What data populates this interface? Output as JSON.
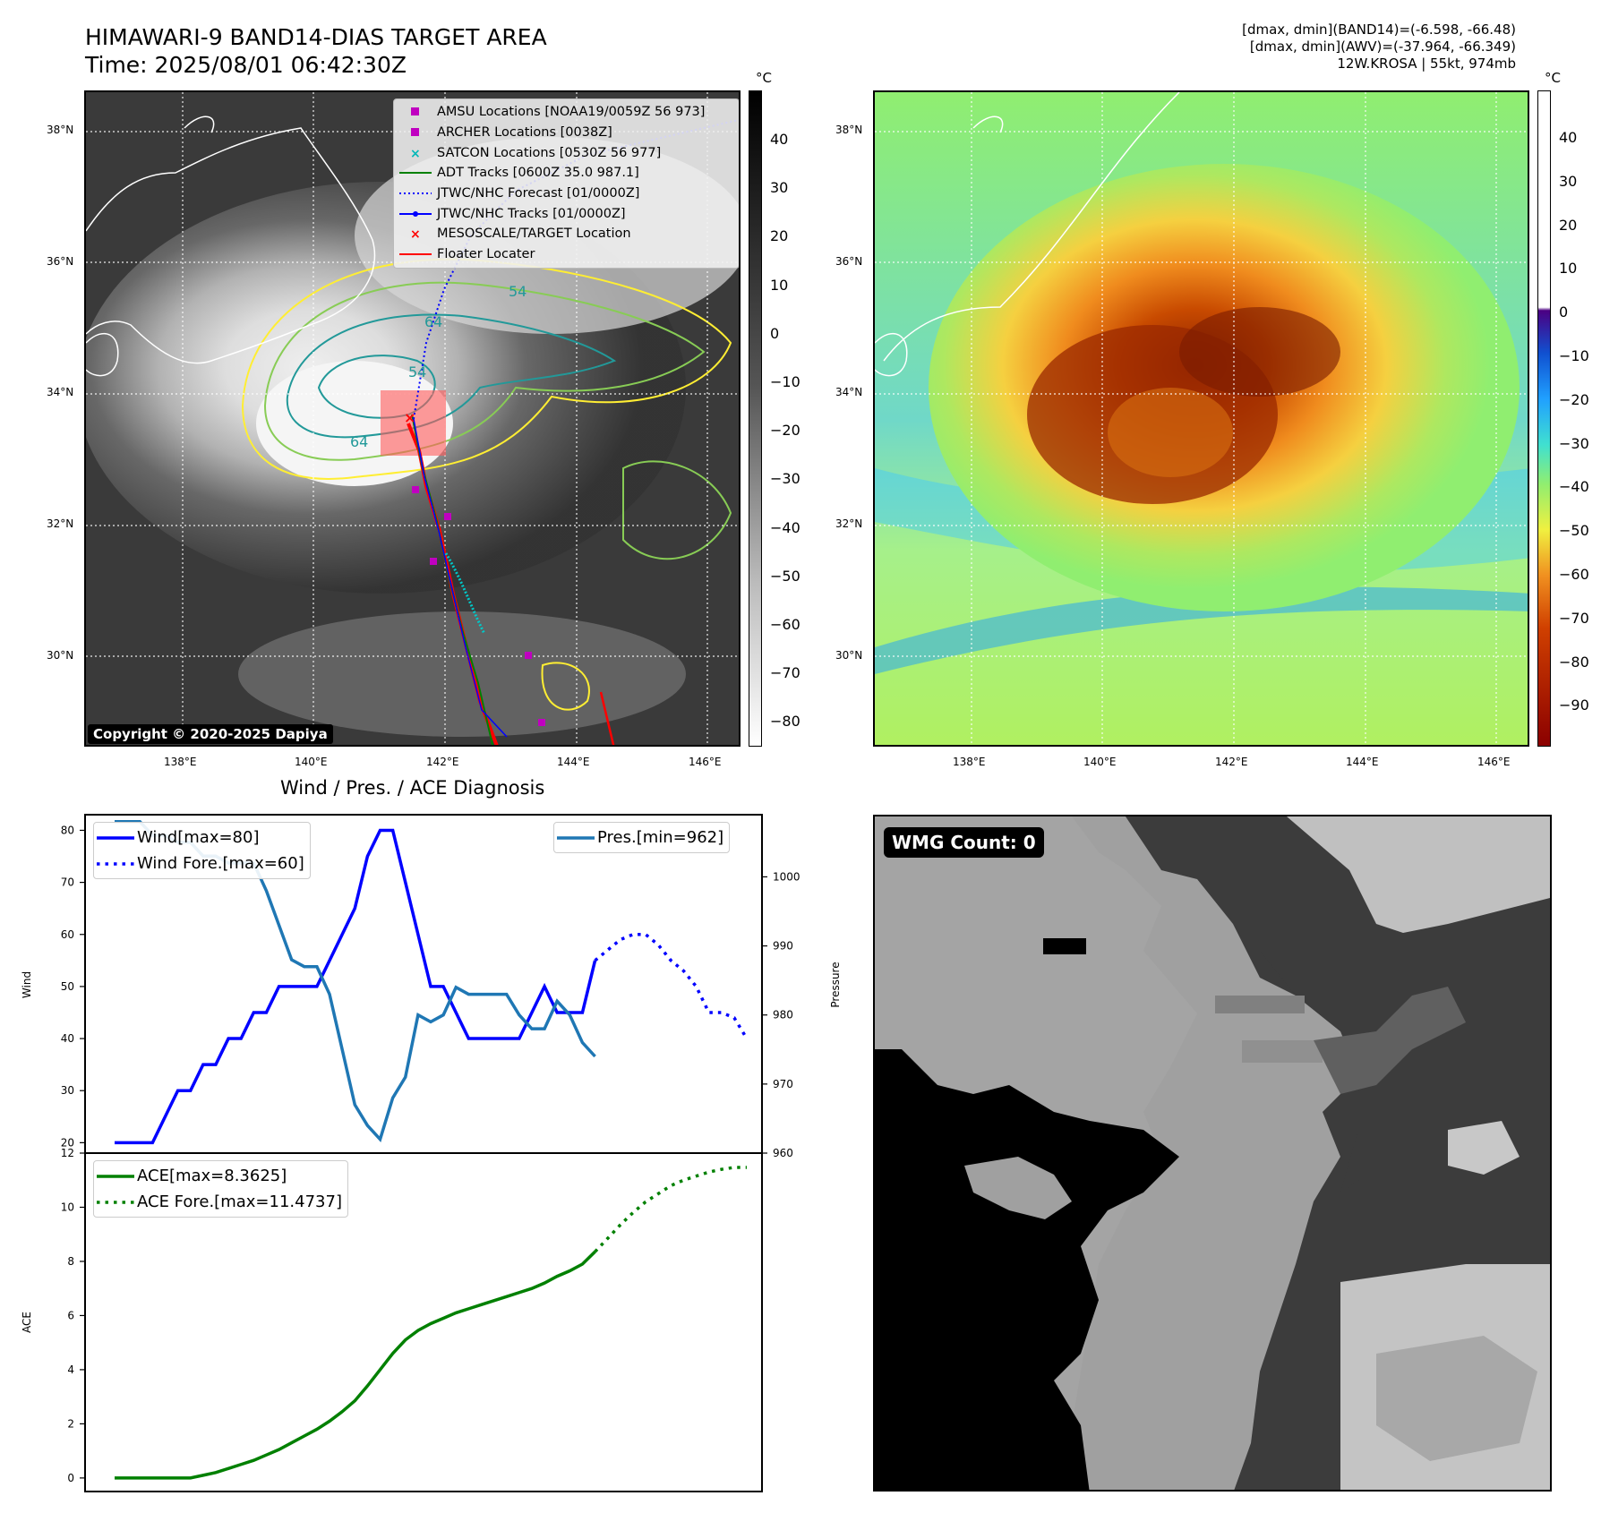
{
  "header": {
    "title_line1": "HIMAWARI-9 BAND14-DIAS TARGET AREA",
    "title_line2": "Time: 2025/08/01 06:42:30Z",
    "right_line1": "[dmax, dmin](BAND14)=(-6.598, -66.48)",
    "right_line2": "[dmax, dmin](AWV)=(-37.964, -66.349)",
    "right_line3": "12W.KROSA | 55kt, 974mb"
  },
  "map_axes": {
    "lat_labels": [
      "38°N",
      "36°N",
      "34°N",
      "32°N",
      "30°N"
    ],
    "lon_labels": [
      "138°E",
      "140°E",
      "142°E",
      "144°E",
      "146°E"
    ]
  },
  "ir_panel": {
    "colorbar_unit": "°C",
    "colorbar_ticks": [
      "40",
      "30",
      "20",
      "10",
      "0",
      "−10",
      "−20",
      "−30",
      "−40",
      "−50",
      "−60",
      "−70",
      "−80"
    ],
    "copyright": "Copyright © 2020-2025 Dapiya",
    "legend": [
      {
        "label": "AMSU Locations [NOAA19/0059Z 56 973]",
        "color": "#c000c0",
        "symbol": "square"
      },
      {
        "label": "ARCHER Locations [0038Z]",
        "color": "#c000c0",
        "symbol": "square"
      },
      {
        "label": "SATCON Locations [0530Z 56 977]",
        "color": "#00b8b8",
        "symbol": "x"
      },
      {
        "label": "ADT Tracks [0600Z 35.0 987.1]",
        "color": "#008000",
        "symbol": "line"
      },
      {
        "label": "JTWC/NHC Forecast [01/0000Z]",
        "color": "#0000ff",
        "symbol": "dotted"
      },
      {
        "label": "JTWC/NHC Tracks [01/0000Z]",
        "color": "#0000ff",
        "symbol": "line-dot"
      },
      {
        "label": "MESOSCALE/TARGET Location",
        "color": "#ff0000",
        "symbol": "x"
      },
      {
        "label": "Floater Locater",
        "color": "#ff0000",
        "symbol": "line"
      }
    ],
    "contour_labels": [
      "54",
      "64",
      "54",
      "64"
    ]
  },
  "wv_panel": {
    "colorbar_unit": "°C",
    "colorbar_ticks": [
      "40",
      "30",
      "20",
      "10",
      "0",
      "−10",
      "−20",
      "−30",
      "−40",
      "−50",
      "−60",
      "−70",
      "−80",
      "−90"
    ]
  },
  "diagnosis": {
    "title": "Wind / Pres. / ACE Diagnosis",
    "wind_ylabel": "Wind",
    "pressure_ylabel": "Pressure",
    "ace_ylabel": "ACE",
    "legend_wind": "Wind[max=80]",
    "legend_wind_fore": "Wind Fore.[max=60]",
    "legend_pres": "Pres.[min=962]",
    "legend_ace": "ACE[max=8.3625]",
    "legend_ace_fore": "ACE Fore.[max=11.4737]"
  },
  "wmg_panel": {
    "label": "WMG Count: 0"
  },
  "chart_data": [
    {
      "type": "line",
      "title": "Wind / Pres. / ACE Diagnosis",
      "ylabel": "Wind",
      "y2label": "Pressure",
      "ylim": [
        18,
        83
      ],
      "y2lim": [
        960,
        1009
      ],
      "yticks": [
        20,
        30,
        40,
        50,
        60,
        70,
        80
      ],
      "y2ticks": [
        960,
        970,
        980,
        990,
        1000
      ],
      "series": [
        {
          "name": "Wind[max=80]",
          "axis": "left",
          "color": "#0000ff",
          "style": "solid",
          "x": [
            0,
            1,
            2,
            3,
            4,
            5,
            6,
            7,
            8,
            9,
            10,
            11,
            12,
            13,
            14,
            15,
            16,
            17,
            18,
            19,
            20,
            21,
            22,
            23,
            24,
            25,
            26,
            27,
            28,
            29,
            30,
            31,
            32,
            33,
            34,
            35,
            36,
            37,
            38
          ],
          "values": [
            20,
            20,
            20,
            20,
            25,
            30,
            30,
            35,
            35,
            40,
            40,
            45,
            45,
            50,
            50,
            50,
            50,
            55,
            60,
            65,
            75,
            80,
            80,
            70,
            60,
            50,
            50,
            45,
            40,
            40,
            40,
            40,
            40,
            45,
            50,
            45,
            45,
            45,
            55
          ]
        },
        {
          "name": "Wind Fore.[max=60]",
          "axis": "left",
          "color": "#0000ff",
          "style": "dotted",
          "x": [
            38,
            39,
            40,
            41,
            42,
            43,
            44,
            45,
            46,
            47,
            48,
            49,
            50
          ],
          "values": [
            55,
            57,
            59,
            60,
            60,
            58,
            55,
            53,
            50,
            45,
            45,
            44,
            40
          ]
        },
        {
          "name": "Pres.[min=962]",
          "axis": "right",
          "color": "#1f77b4",
          "style": "solid",
          "x": [
            0,
            1,
            2,
            3,
            4,
            5,
            6,
            7,
            8,
            9,
            10,
            11,
            12,
            13,
            14,
            15,
            16,
            17,
            18,
            19,
            20,
            21,
            22,
            23,
            24,
            25,
            26,
            27,
            28,
            29,
            30,
            31,
            32,
            33,
            34,
            35,
            36,
            37,
            38
          ],
          "values": [
            1008,
            1008,
            1008,
            1006,
            1006,
            1005,
            1005,
            1003,
            1003,
            1002,
            1002,
            1002,
            998,
            993,
            988,
            987,
            987,
            983,
            975,
            967,
            964,
            962,
            968,
            971,
            980,
            979,
            980,
            984,
            983,
            983,
            983,
            983,
            980,
            978,
            978,
            982,
            980,
            976,
            974
          ]
        }
      ]
    },
    {
      "type": "line",
      "ylabel": "ACE",
      "ylim": [
        -0.5,
        12
      ],
      "yticks": [
        0,
        2,
        4,
        6,
        8,
        10,
        12
      ],
      "series": [
        {
          "name": "ACE[max=8.3625]",
          "color": "#008000",
          "style": "solid",
          "x": [
            0,
            1,
            2,
            3,
            4,
            5,
            6,
            7,
            8,
            9,
            10,
            11,
            12,
            13,
            14,
            15,
            16,
            17,
            18,
            19,
            20,
            21,
            22,
            23,
            24,
            25,
            26,
            27,
            28,
            29,
            30,
            31,
            32,
            33,
            34,
            35,
            36,
            37,
            38
          ],
          "values": [
            0,
            0,
            0,
            0,
            0,
            0,
            0,
            0.1,
            0.2,
            0.35,
            0.5,
            0.65,
            0.85,
            1.05,
            1.3,
            1.55,
            1.8,
            2.1,
            2.45,
            2.85,
            3.4,
            4.0,
            4.6,
            5.1,
            5.45,
            5.7,
            5.9,
            6.1,
            6.25,
            6.4,
            6.55,
            6.7,
            6.85,
            7.0,
            7.2,
            7.45,
            7.65,
            7.9,
            8.36
          ]
        },
        {
          "name": "ACE Fore.[max=11.4737]",
          "color": "#008000",
          "style": "dotted",
          "x": [
            38,
            39,
            40,
            41,
            42,
            43,
            44,
            45,
            46,
            47,
            48,
            49,
            50
          ],
          "values": [
            8.36,
            8.85,
            9.35,
            9.8,
            10.2,
            10.5,
            10.8,
            11.0,
            11.15,
            11.3,
            11.4,
            11.47,
            11.47
          ]
        }
      ]
    }
  ]
}
